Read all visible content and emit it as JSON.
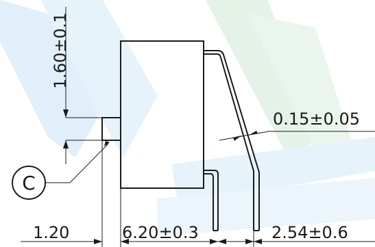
{
  "dimensions": {
    "height_body": "1.60±0.1",
    "lead_thickness": "0.15±0.05",
    "bump_offset": "1.20",
    "body_width": "6.20±0.3",
    "lead_pitch": "2.54±0.6"
  },
  "callout": {
    "label": "C"
  },
  "colors": {
    "line": "#1a1a1a",
    "watermark_blue": "#c8e3f5",
    "watermark_green": "#cfe8d6"
  }
}
